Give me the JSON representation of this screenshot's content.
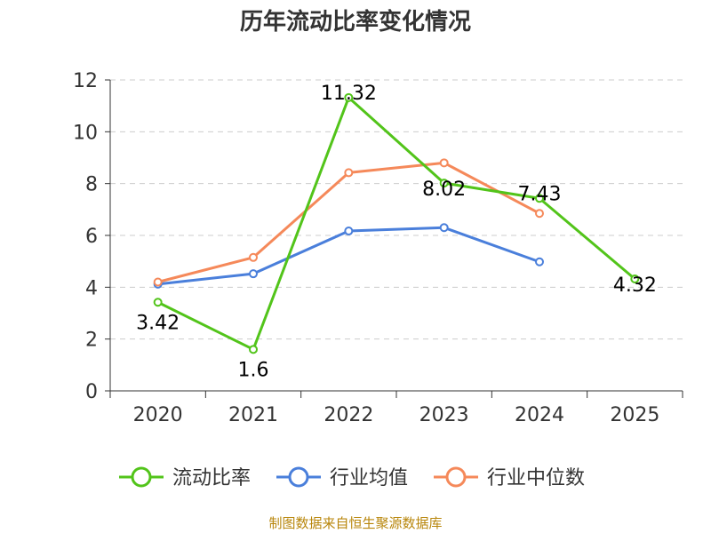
{
  "chart_data": {
    "type": "line",
    "title": "历年流动比率变化情况",
    "categories": [
      "2020",
      "2021",
      "2022",
      "2023",
      "2024",
      "2025"
    ],
    "ylim": [
      0,
      12
    ],
    "yticks": [
      0,
      2,
      4,
      6,
      8,
      10,
      12
    ],
    "grid": true,
    "legend_position": "bottom",
    "series": [
      {
        "name": "流动比率",
        "color": "#52c41a",
        "values": [
          3.42,
          1.6,
          11.32,
          8.02,
          7.43,
          4.32
        ],
        "labels": [
          "3.42",
          "1.6",
          "11.32",
          "8.02",
          "7.43",
          "4.32"
        ],
        "show_labels": true
      },
      {
        "name": "行业均值",
        "color": "#4a7fdb",
        "values": [
          4.12,
          4.52,
          6.17,
          6.3,
          4.98,
          null
        ],
        "show_labels": false
      },
      {
        "name": "行业中位数",
        "color": "#f5895a",
        "values": [
          4.2,
          5.15,
          8.42,
          8.8,
          6.85,
          null
        ],
        "show_labels": false
      }
    ],
    "source": "制图数据来自恒生聚源数据库"
  }
}
